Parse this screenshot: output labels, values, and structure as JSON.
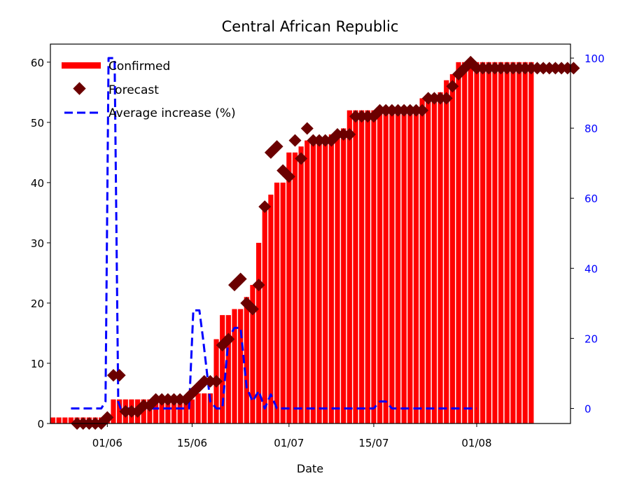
{
  "chart_data": {
    "type": "bar",
    "title": "Central African Republic",
    "xlabel": "Date",
    "ylabel": "",
    "ylim": [
      0,
      63
    ],
    "y2lim": [
      -4.3,
      104
    ],
    "yticks": [
      0,
      10,
      20,
      30,
      40,
      50,
      60
    ],
    "y2ticks": [
      0,
      20,
      40,
      60,
      80,
      100
    ],
    "xticks": [
      {
        "label": "01/06",
        "index": 9
      },
      {
        "label": "15/06",
        "index": 23
      },
      {
        "label": "01/07",
        "index": 39
      },
      {
        "label": "15/07",
        "index": 53
      },
      {
        "label": "01/08",
        "index": 70
      }
    ],
    "legend_position": "top-left",
    "colors": {
      "confirmed": "#ff0000",
      "forecast": "#6b0000",
      "average_increase": "#0000ff",
      "right_axis": "#0000ff"
    },
    "series": [
      {
        "name": "Confirmed",
        "kind": "bar",
        "axis": "left",
        "values": [
          1,
          1,
          1,
          1,
          1,
          1,
          1,
          1,
          1,
          1,
          4,
          4,
          4,
          4,
          4,
          4,
          4,
          4,
          4,
          4,
          4,
          4,
          4,
          4,
          5,
          5,
          5,
          14,
          18,
          18,
          19,
          19,
          21,
          23,
          30,
          36,
          38,
          40,
          40,
          45,
          45,
          46,
          47,
          47,
          47,
          47,
          48,
          48,
          49,
          52,
          52,
          52,
          52,
          52,
          52,
          52,
          52,
          52,
          52,
          52,
          52,
          54,
          54,
          54,
          55,
          57,
          58,
          60,
          60,
          60,
          60,
          60,
          60,
          60,
          60,
          60,
          60,
          60,
          60,
          60
        ]
      },
      {
        "name": "Forecast",
        "kind": "marker",
        "axis": "left",
        "start_index": 4,
        "values": [
          0,
          0,
          0,
          0,
          0,
          1,
          8,
          8,
          2,
          2,
          2,
          3,
          3,
          4,
          4,
          4,
          4,
          4,
          4,
          5,
          6,
          7,
          7,
          7,
          13,
          14,
          23,
          24,
          20,
          19,
          23,
          36,
          45,
          46,
          42,
          41,
          47,
          44,
          49,
          47,
          47,
          47,
          47,
          48,
          48,
          48,
          51,
          51,
          51,
          51,
          52,
          52,
          52,
          52,
          52,
          52,
          52,
          52,
          54,
          54,
          54,
          54,
          56,
          58,
          59,
          60,
          59,
          59,
          59,
          59,
          59,
          59,
          59,
          59,
          59,
          59,
          59,
          59,
          59,
          59,
          59,
          59,
          59
        ]
      },
      {
        "name": "Average increase (%)",
        "kind": "dashed-line",
        "axis": "right",
        "points": [
          [
            3,
            0
          ],
          [
            8,
            0
          ],
          [
            8.7,
            2
          ],
          [
            9.2,
            100
          ],
          [
            10.2,
            100
          ],
          [
            10.8,
            2
          ],
          [
            11.2,
            0
          ],
          [
            22.5,
            0
          ],
          [
            23.2,
            28
          ],
          [
            24.2,
            28
          ],
          [
            24.8,
            20
          ],
          [
            26,
            2
          ],
          [
            27,
            0
          ],
          [
            28,
            0
          ],
          [
            29,
            20
          ],
          [
            30,
            23
          ],
          [
            31,
            23
          ],
          [
            32,
            6
          ],
          [
            33,
            2
          ],
          [
            34,
            5
          ],
          [
            35,
            0
          ],
          [
            36,
            4
          ],
          [
            37,
            0
          ],
          [
            53,
            0
          ],
          [
            54,
            2
          ],
          [
            55,
            2
          ],
          [
            56,
            0
          ],
          [
            70,
            0
          ]
        ]
      }
    ]
  }
}
